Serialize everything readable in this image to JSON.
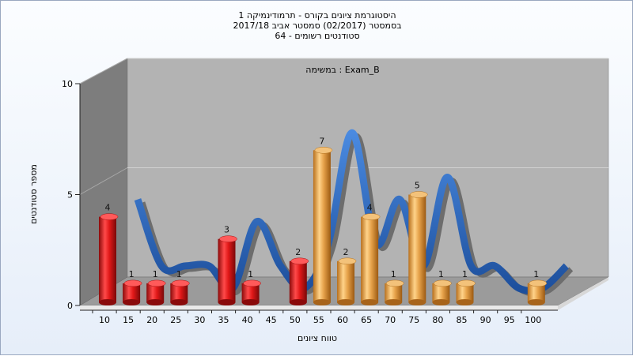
{
  "title_lines": [
    "היסטוגרמת ציונים בקורס - תרמודינמיקה 1",
    "בסמסטר (02/2017) סמסטר אביב 2017/18",
    "סטודנטים רשומים - 64"
  ],
  "colors": {
    "bar_fail": "#e01818",
    "bar_pass": "#e6a24a",
    "ribbon": "#2f6fc4",
    "back_wall": "#b3b3b3",
    "side_wall": "#7a7a7a"
  },
  "chart_data": {
    "type": "bar",
    "title": "היסטוגרמת ציונים בקורס - תרמודינמיקה 1",
    "subtitle": "בסמסטר (02/2017) סמסטר אביב 2017/18 · סטודנטים רשומים - 64",
    "annotation": "במשימה : Exam_B",
    "xlabel": "טווח ציונים",
    "ylabel": "מספר סטודנטים",
    "ylim": [
      0,
      10
    ],
    "yticks": [
      "0",
      "5",
      "10"
    ],
    "categories": [
      "10",
      "15",
      "20",
      "25",
      "30",
      "35",
      "40",
      "45",
      "50",
      "55",
      "60",
      "65",
      "70",
      "75",
      "80",
      "85",
      "90",
      "95",
      "100"
    ],
    "values": [
      4,
      1,
      1,
      1,
      0,
      3,
      1,
      0,
      2,
      7,
      2,
      4,
      1,
      5,
      1,
      1,
      0,
      0,
      1
    ],
    "pass_from": "55",
    "grid": true
  }
}
